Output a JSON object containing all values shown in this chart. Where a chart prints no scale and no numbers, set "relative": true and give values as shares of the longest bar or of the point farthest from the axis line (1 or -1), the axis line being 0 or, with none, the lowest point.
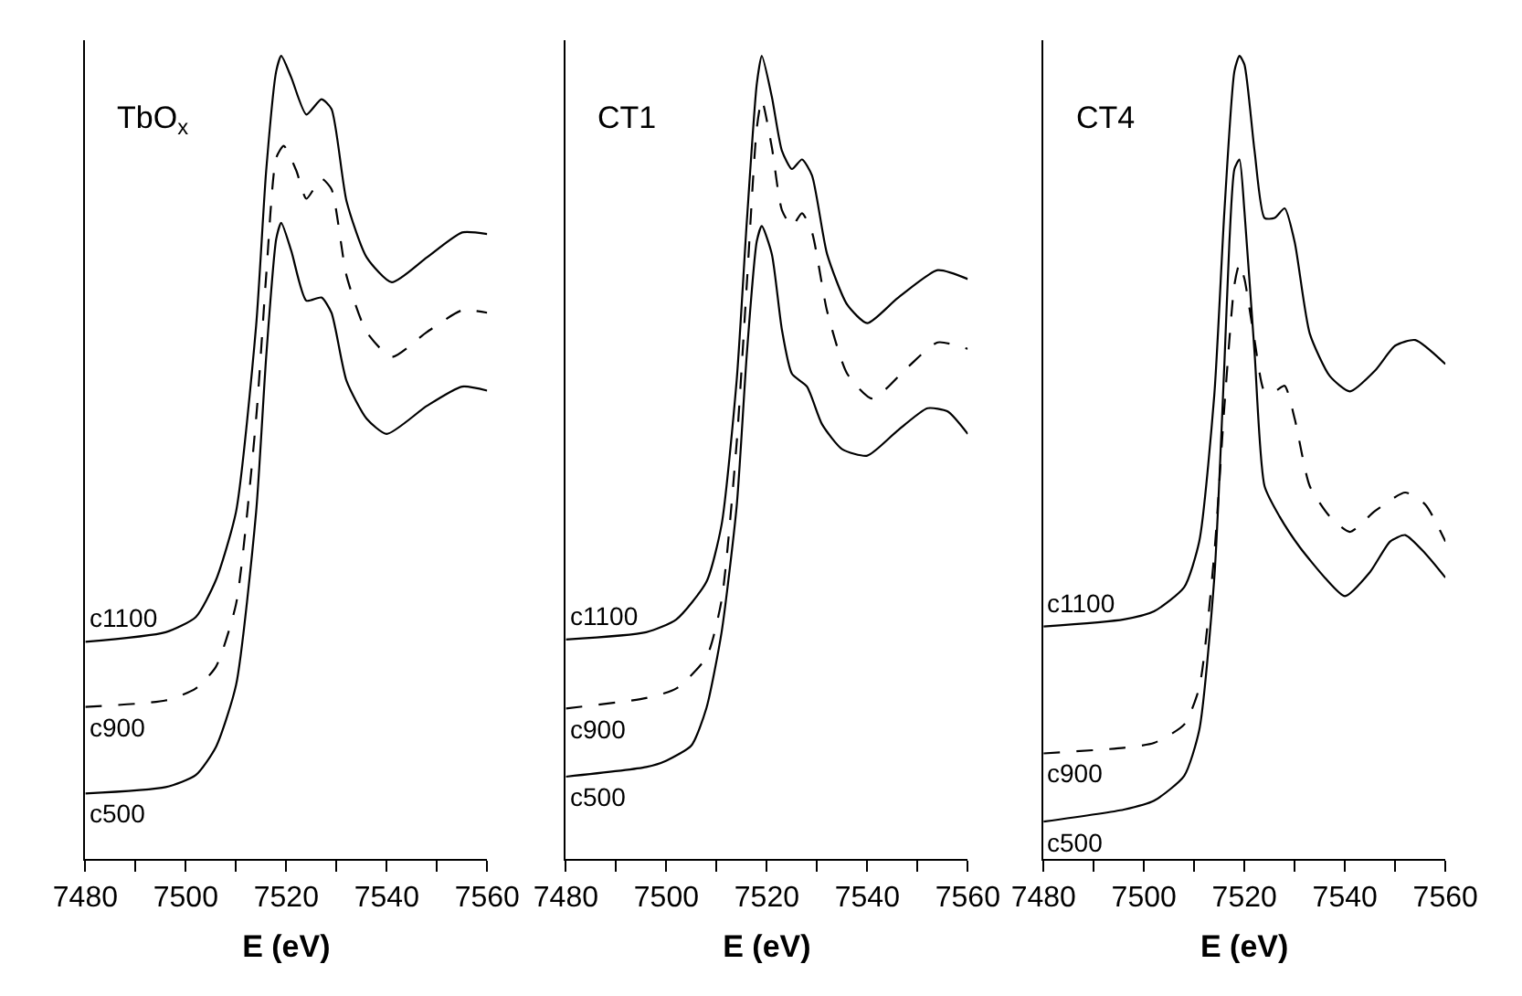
{
  "chart_data": [
    {
      "type": "line",
      "title": "TbO$_{x}$",
      "xlabel": "E (eV)",
      "relative": true,
      "xlim": [
        7480,
        7560
      ],
      "xticks": [
        7480,
        {
          "value": 7490,
          "label": null
        },
        7500,
        {
          "value": 7510,
          "label": null
        },
        7520,
        {
          "value": 7530,
          "label": null
        },
        7540,
        {
          "value": 7550,
          "label": null
        },
        7560
      ],
      "tick_labels": "x",
      "series": [
        {
          "name": "c1100",
          "color": "#000000",
          "line_style": "solid",
          "x": [
            7480,
            7496,
            7502,
            7506,
            7510,
            7514,
            7516,
            7518,
            7519,
            7521,
            7524,
            7527,
            7529,
            7532,
            7536,
            7541,
            7548,
            7555,
            7560
          ],
          "values": [
            0.27,
            0.282,
            0.301,
            0.347,
            0.432,
            0.664,
            0.857,
            0.981,
            1,
            0.973,
            0.927,
            0.946,
            0.934,
            0.819,
            0.749,
            0.718,
            0.749,
            0.78,
            0.778
          ]
        },
        {
          "name": "c900",
          "color": "#000000",
          "line_style": "dashed",
          "x": [
            7480,
            7496,
            7502,
            7506,
            7510,
            7514,
            7516,
            7518,
            7519.5,
            7522,
            7524,
            7527,
            7529,
            7532,
            7536,
            7541,
            7548,
            7555,
            7560
          ],
          "values": [
            0.189,
            0.197,
            0.212,
            0.239,
            0.317,
            0.548,
            0.726,
            0.873,
            0.888,
            0.857,
            0.822,
            0.847,
            0.834,
            0.726,
            0.656,
            0.625,
            0.656,
            0.683,
            0.68
          ]
        },
        {
          "name": "c500",
          "color": "#000000",
          "line_style": "solid",
          "x": [
            7480,
            7496,
            7502,
            7506,
            7510,
            7514,
            7516,
            7518,
            7519,
            7521,
            7524,
            7527,
            7529,
            7532,
            7536,
            7540,
            7548,
            7555,
            7560
          ],
          "values": [
            0.081,
            0.089,
            0.104,
            0.139,
            0.216,
            0.432,
            0.625,
            0.772,
            0.792,
            0.757,
            0.695,
            0.699,
            0.68,
            0.595,
            0.548,
            0.529,
            0.564,
            0.588,
            0.583
          ]
        }
      ]
    },
    {
      "type": "line",
      "title": "CT1",
      "xlabel": "E (eV)",
      "relative": true,
      "xlim": [
        7480,
        7560
      ],
      "xticks": [
        7480,
        {
          "value": 7490,
          "label": null
        },
        7500,
        {
          "value": 7510,
          "label": null
        },
        7520,
        {
          "value": 7530,
          "label": null
        },
        7540,
        {
          "value": 7550,
          "label": null
        },
        7560
      ],
      "tick_labels": "x",
      "series": [
        {
          "name": "c1100",
          "color": "#000000",
          "line_style": "solid",
          "x": [
            7480,
            7496,
            7502,
            7508,
            7511,
            7514,
            7516,
            7518,
            7519,
            7521,
            7523,
            7525,
            7527,
            7529,
            7532,
            7536,
            7540,
            7546,
            7554,
            7560
          ],
          "values": [
            0.273,
            0.282,
            0.298,
            0.345,
            0.416,
            0.596,
            0.792,
            0.965,
            1,
            0.949,
            0.882,
            0.859,
            0.871,
            0.851,
            0.753,
            0.69,
            0.667,
            0.698,
            0.733,
            0.722
          ]
        },
        {
          "name": "c900",
          "color": "#000000",
          "line_style": "dashed",
          "x": [
            7480,
            7496,
            7502,
            7508,
            7511,
            7514,
            7516,
            7518,
            7519,
            7521,
            7523,
            7525,
            7527,
            7529,
            7532,
            7536,
            7541,
            7548,
            7554,
            7560
          ],
          "values": [
            0.187,
            0.2,
            0.212,
            0.251,
            0.322,
            0.518,
            0.714,
            0.91,
            0.945,
            0.886,
            0.808,
            0.788,
            0.804,
            0.78,
            0.682,
            0.604,
            0.573,
            0.612,
            0.643,
            0.635
          ]
        },
        {
          "name": "c500",
          "color": "#000000",
          "line_style": "solid",
          "x": [
            7480,
            7496,
            7500,
            7505,
            7508,
            7511,
            7514,
            7516,
            7518,
            7519,
            7521,
            7523,
            7525,
            7528,
            7531,
            7535,
            7540,
            7546,
            7552,
            7556,
            7560
          ],
          "values": [
            0.102,
            0.114,
            0.122,
            0.141,
            0.188,
            0.282,
            0.439,
            0.627,
            0.769,
            0.788,
            0.753,
            0.659,
            0.604,
            0.588,
            0.541,
            0.51,
            0.502,
            0.533,
            0.561,
            0.557,
            0.529
          ]
        }
      ]
    },
    {
      "type": "line",
      "title": "CT4",
      "xlabel": "E (eV)",
      "relative": true,
      "xlim": [
        7480,
        7560
      ],
      "xticks": [
        7480,
        {
          "value": 7490,
          "label": null
        },
        7500,
        {
          "value": 7510,
          "label": null
        },
        7520,
        {
          "value": 7530,
          "label": null
        },
        7540,
        {
          "value": 7550,
          "label": null
        },
        7560
      ],
      "tick_labels": "x",
      "series": [
        {
          "name": "c1100",
          "color": "#000000",
          "line_style": "solid",
          "x": [
            7480,
            7496,
            7502,
            7508,
            7511,
            7514,
            7516,
            7518,
            7519,
            7520,
            7522,
            7524,
            7526,
            7528,
            7530,
            7533,
            7537,
            7541,
            7546,
            7550,
            7554,
            7560
          ],
          "values": [
            0.289,
            0.298,
            0.308,
            0.338,
            0.395,
            0.578,
            0.806,
            0.981,
            1,
            0.989,
            0.882,
            0.798,
            0.798,
            0.81,
            0.768,
            0.654,
            0.601,
            0.582,
            0.608,
            0.639,
            0.646,
            0.616
          ]
        },
        {
          "name": "c900",
          "color": "#000000",
          "line_style": "dashed",
          "x": [
            7480,
            7496,
            7502,
            7508,
            7511,
            7514,
            7516,
            7518,
            7519,
            7520,
            7522,
            7524,
            7526,
            7528,
            7530,
            7533,
            7537,
            7541,
            7546,
            7552,
            7556,
            7560
          ],
          "values": [
            0.131,
            0.138,
            0.144,
            0.167,
            0.213,
            0.38,
            0.563,
            0.715,
            0.741,
            0.722,
            0.646,
            0.582,
            0.582,
            0.589,
            0.548,
            0.464,
            0.426,
            0.407,
            0.433,
            0.456,
            0.441,
            0.395
          ]
        },
        {
          "name": "c500",
          "color": "#000000",
          "line_style": "solid",
          "x": [
            7480,
            7496,
            7502,
            7508,
            7511,
            7514,
            7516,
            7517,
            7518,
            7519,
            7520,
            7522,
            7524,
            7527,
            7531,
            7536,
            7540,
            7545,
            7549,
            7552,
            7556,
            7560
          ],
          "values": [
            0.046,
            0.061,
            0.072,
            0.103,
            0.16,
            0.35,
            0.616,
            0.768,
            0.859,
            0.871,
            0.806,
            0.631,
            0.464,
            0.426,
            0.388,
            0.35,
            0.327,
            0.357,
            0.395,
            0.403,
            0.38,
            0.35
          ]
        }
      ]
    }
  ]
}
